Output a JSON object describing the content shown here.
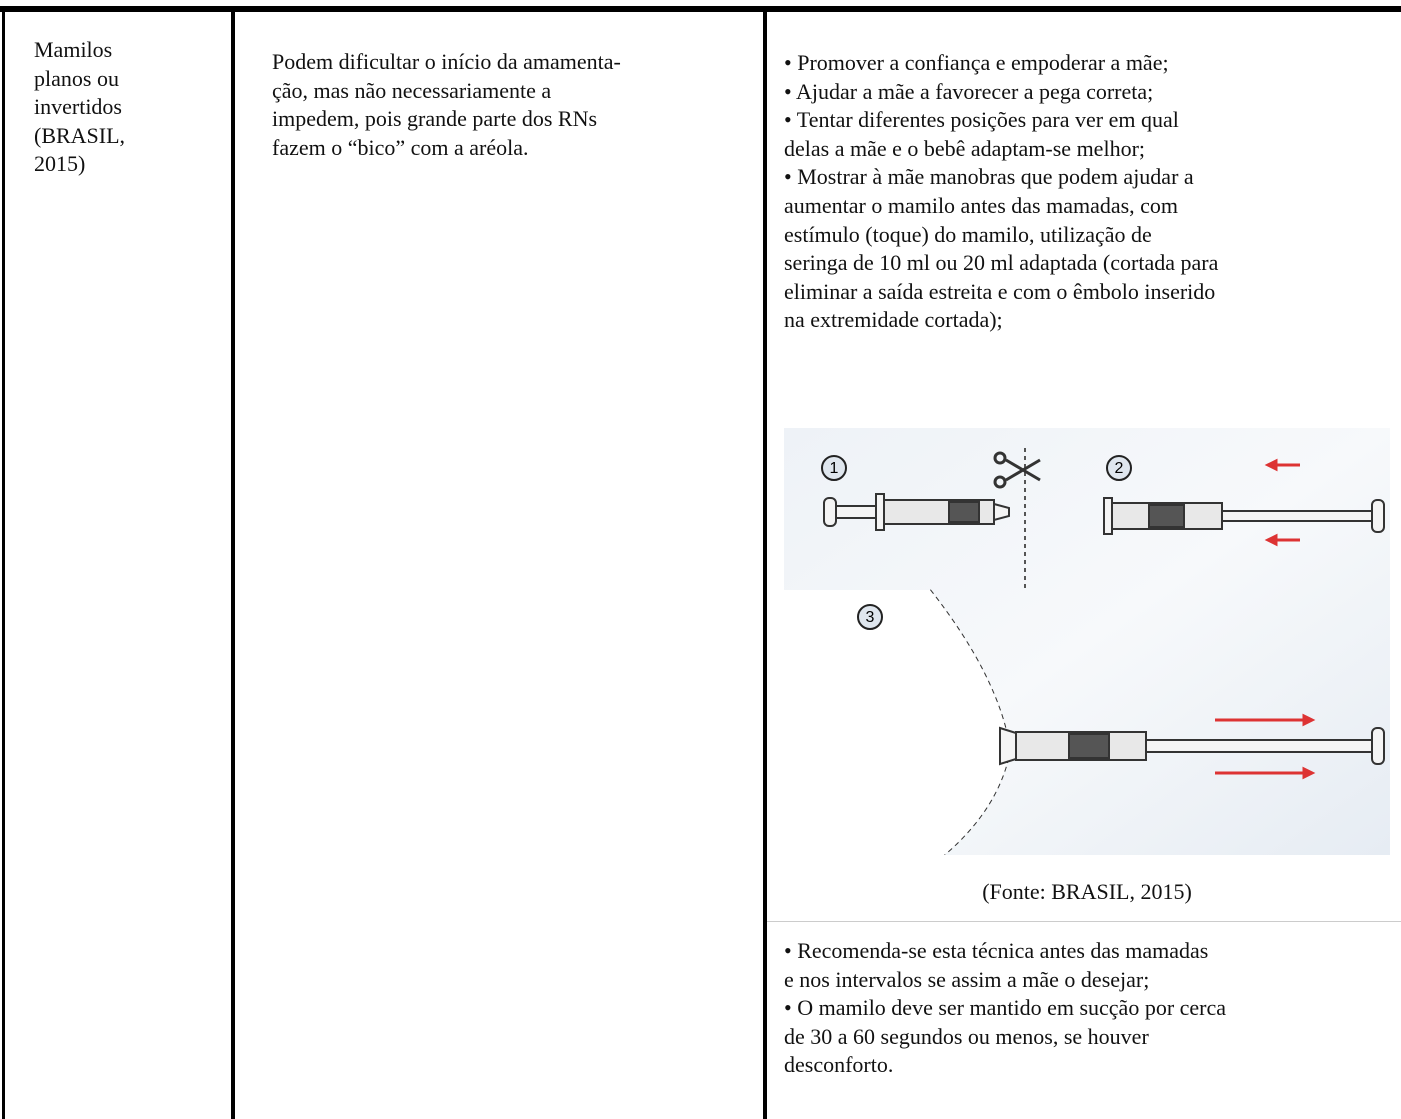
{
  "table": {
    "row": {
      "condition": {
        "lines": [
          "Mamilos",
          "planos ou",
          "invertidos",
          "(BRASIL,",
          "2015)"
        ]
      },
      "description": {
        "lines": [
          "Podem dificultar o início da amamenta-",
          "ção, mas não necessariamente a",
          "impedem, pois grande parte dos RNs",
          "fazem o “bico” com a aréola."
        ]
      },
      "interventions": {
        "lines": [
          "• Promover a confiança e empoderar a mãe;",
          "• Ajudar a mãe a favorecer a pega correta;",
          "• Tentar diferentes posições para ver em qual",
          "delas a mãe e o bebê adaptam-se melhor;",
          "• Mostrar à mãe manobras que podem ajudar a",
          "aumentar o mamilo antes das mamadas, com",
          "estímulo (toque) do mamilo, utilização de",
          "seringa de 10 ml ou 20 ml adaptada (cortada para",
          "eliminar a saída estreita e com o êmbolo inserido",
          "na extremidade cortada);"
        ],
        "figure": {
          "steps": [
            "1",
            "2",
            "3"
          ],
          "caption": "(Fonte: BRASIL, 2015)"
        },
        "lines_after": [
          "• Recomenda-se esta técnica antes das mamadas",
          "e nos intervalos se assim a mãe o desejar;",
          "• O mamilo deve ser mantido em sucção por cerca",
          "de 30 a 60 segundos ou menos, se houver",
          "desconforto."
        ]
      }
    }
  }
}
